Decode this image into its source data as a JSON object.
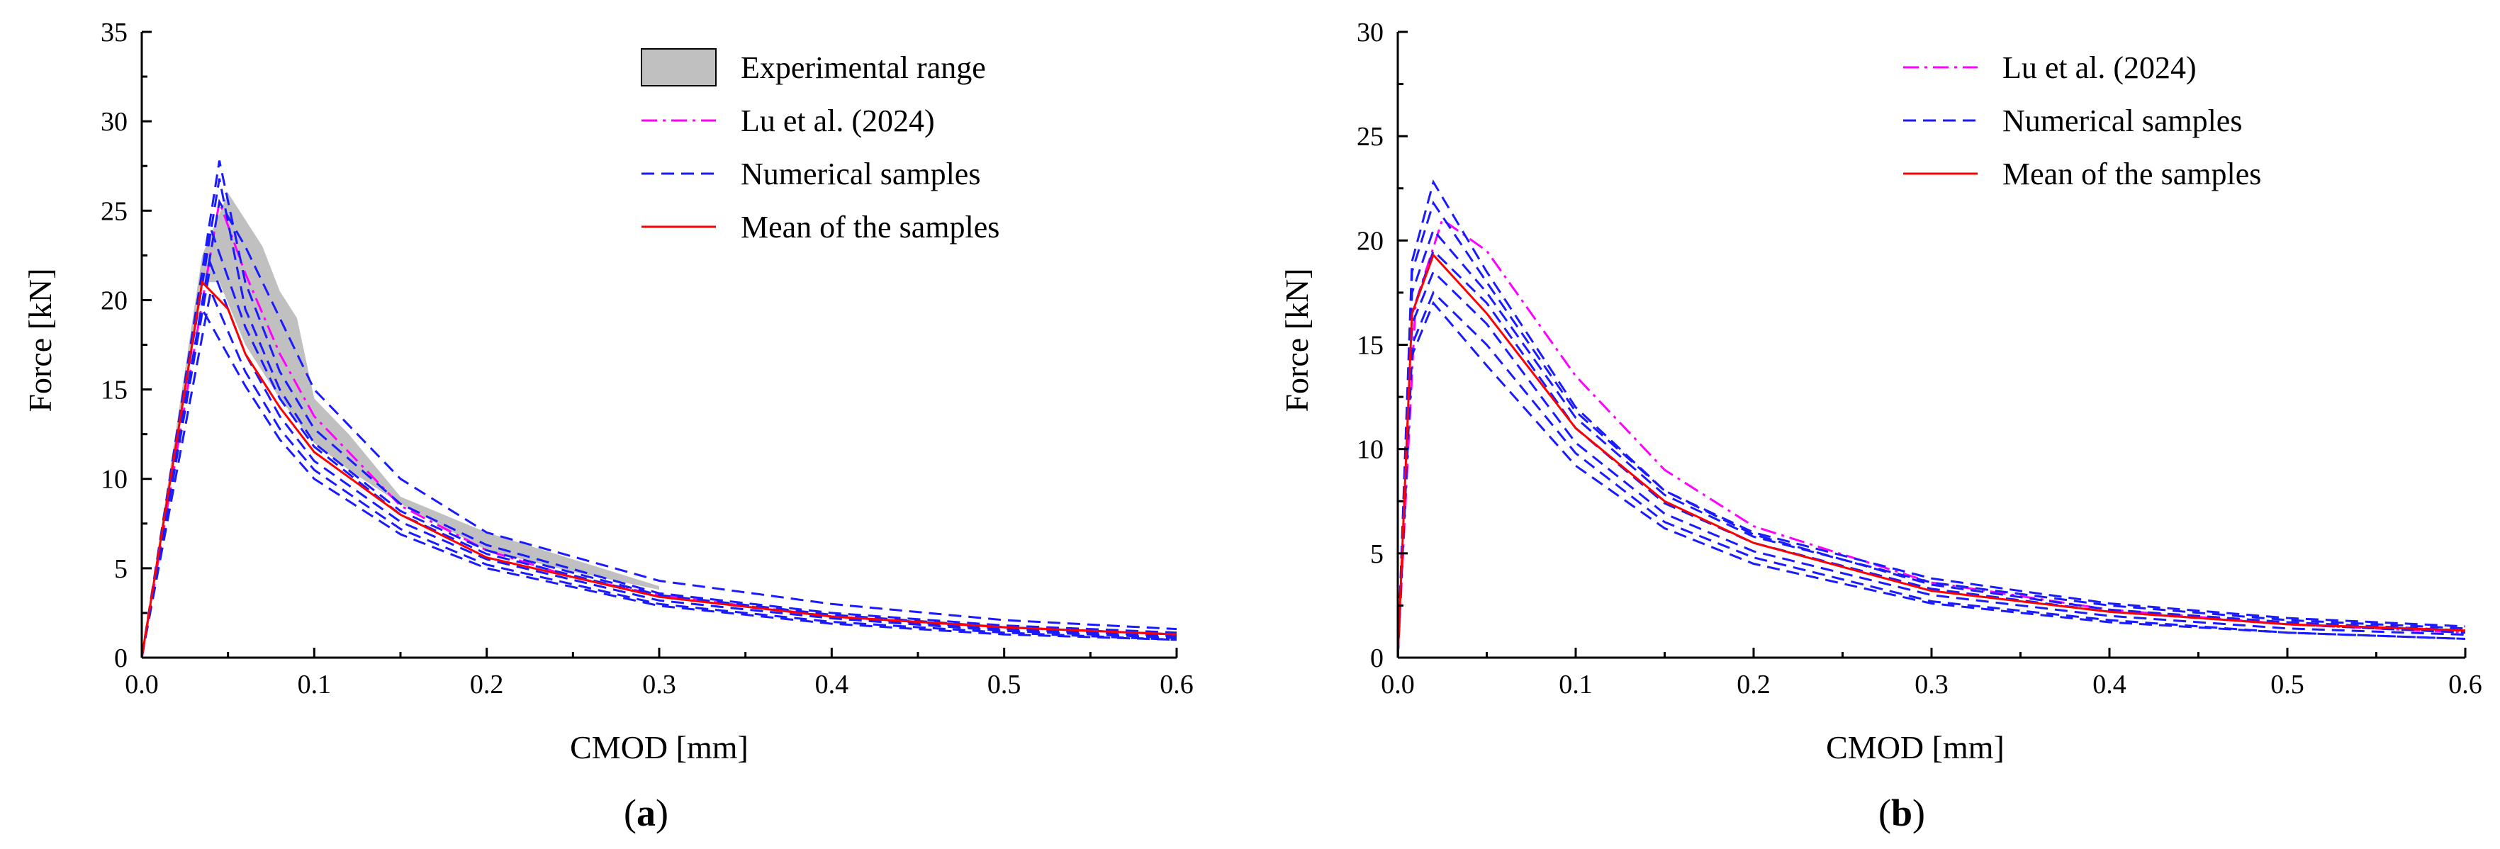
{
  "chart_data": [
    {
      "type": "line",
      "panel": "(a)",
      "panel_letter": "a",
      "xlabel": "CMOD [mm]",
      "ylabel": "Force [kN]",
      "xlim": [
        0.0,
        0.6
      ],
      "ylim": [
        0,
        35
      ],
      "xticks": [
        0.0,
        0.1,
        0.2,
        0.3,
        0.4,
        0.5,
        0.6
      ],
      "xtick_labels": [
        "0.0",
        "0.1",
        "0.2",
        "0.3",
        "0.4",
        "0.5",
        "0.6"
      ],
      "yticks": [
        0,
        5,
        10,
        15,
        20,
        25,
        30,
        35
      ],
      "ytick_labels": [
        "0",
        "5",
        "10",
        "15",
        "20",
        "25",
        "30",
        "35"
      ],
      "grid": false,
      "legend_position": "top-right",
      "legend": [
        "Experimental range",
        "Lu et al. (2024)",
        "Numerical samples",
        "Mean of the samples"
      ],
      "experimental_range": {
        "upper": [
          [
            0.0,
            0
          ],
          [
            0.035,
            22.5
          ],
          [
            0.05,
            26.0
          ],
          [
            0.06,
            24.5
          ],
          [
            0.07,
            23.0
          ],
          [
            0.08,
            20.5
          ],
          [
            0.09,
            19.0
          ],
          [
            0.1,
            14.5
          ],
          [
            0.12,
            12.5
          ],
          [
            0.15,
            9.0
          ],
          [
            0.2,
            7.0
          ],
          [
            0.25,
            5.5
          ],
          [
            0.3,
            4.0
          ]
        ],
        "lower": [
          [
            0.3,
            3.8
          ],
          [
            0.25,
            4.8
          ],
          [
            0.2,
            6.0
          ],
          [
            0.15,
            8.6
          ],
          [
            0.12,
            10.5
          ],
          [
            0.1,
            12.0
          ],
          [
            0.08,
            14.5
          ],
          [
            0.06,
            17.5
          ],
          [
            0.045,
            21.0
          ],
          [
            0.035,
            21.0
          ],
          [
            0.0,
            0
          ]
        ]
      },
      "series": [
        {
          "name": "Lu et al. (2024)",
          "style": "dashdot",
          "color": "#ff00ff",
          "x": [
            0.0,
            0.045,
            0.06,
            0.08,
            0.1,
            0.15,
            0.2,
            0.25,
            0.3,
            0.4,
            0.5,
            0.6
          ],
          "y": [
            0,
            25.5,
            21.5,
            17.0,
            13.5,
            8.5,
            6.0,
            4.5,
            3.5,
            2.3,
            1.7,
            1.3
          ]
        },
        {
          "name": "Numerical sample 1",
          "style": "dash",
          "color": "#1a1aff",
          "x": [
            0.0,
            0.045,
            0.06,
            0.08,
            0.1,
            0.15,
            0.2,
            0.3,
            0.4,
            0.5,
            0.6
          ],
          "y": [
            0,
            27.8,
            21.0,
            16.0,
            12.8,
            8.6,
            6.3,
            3.6,
            2.5,
            1.8,
            1.4
          ]
        },
        {
          "name": "Numerical sample 2",
          "style": "dash",
          "color": "#1a1aff",
          "x": [
            0.0,
            0.045,
            0.06,
            0.08,
            0.1,
            0.15,
            0.2,
            0.3,
            0.4,
            0.5,
            0.6
          ],
          "y": [
            0,
            26.8,
            19.5,
            15.0,
            12.0,
            8.2,
            6.0,
            3.5,
            2.4,
            1.7,
            1.3
          ]
        },
        {
          "name": "Numerical sample 3",
          "style": "dash",
          "color": "#1a1aff",
          "x": [
            0.0,
            0.045,
            0.06,
            0.08,
            0.1,
            0.15,
            0.2,
            0.3,
            0.4,
            0.5,
            0.6
          ],
          "y": [
            0,
            25.5,
            23.0,
            19.0,
            15.0,
            10.0,
            7.0,
            4.3,
            3.0,
            2.1,
            1.6
          ]
        },
        {
          "name": "Numerical sample 4",
          "style": "dash",
          "color": "#1a1aff",
          "x": [
            0.0,
            0.04,
            0.06,
            0.08,
            0.1,
            0.15,
            0.2,
            0.3,
            0.4,
            0.5,
            0.6
          ],
          "y": [
            0,
            24.0,
            18.5,
            14.5,
            11.8,
            8.0,
            5.8,
            3.4,
            2.3,
            1.6,
            1.2
          ]
        },
        {
          "name": "Numerical sample 5",
          "style": "dash",
          "color": "#1a1aff",
          "x": [
            0.0,
            0.04,
            0.06,
            0.08,
            0.1,
            0.15,
            0.2,
            0.3,
            0.4,
            0.5,
            0.6
          ],
          "y": [
            0,
            22.0,
            17.0,
            13.5,
            11.0,
            7.6,
            5.5,
            3.2,
            2.2,
            1.5,
            1.1
          ]
        },
        {
          "name": "Numerical sample 6",
          "style": "dash",
          "color": "#1a1aff",
          "x": [
            0.0,
            0.04,
            0.06,
            0.08,
            0.1,
            0.15,
            0.2,
            0.3,
            0.4,
            0.5,
            0.6
          ],
          "y": [
            0,
            20.5,
            16.0,
            12.8,
            10.5,
            7.2,
            5.2,
            3.0,
            2.0,
            1.4,
            1.0
          ]
        },
        {
          "name": "Numerical sample 7",
          "style": "dash",
          "color": "#1a1aff",
          "x": [
            0.0,
            0.035,
            0.06,
            0.08,
            0.1,
            0.15,
            0.2,
            0.3,
            0.4,
            0.5,
            0.6
          ],
          "y": [
            0,
            19.5,
            15.2,
            12.2,
            10.0,
            6.9,
            5.0,
            2.9,
            1.9,
            1.3,
            1.0
          ]
        },
        {
          "name": "Mean of the samples",
          "style": "solid",
          "color": "#ff0000",
          "x": [
            0.0,
            0.035,
            0.05,
            0.06,
            0.08,
            0.1,
            0.15,
            0.2,
            0.3,
            0.4,
            0.5,
            0.6
          ],
          "y": [
            0,
            21.0,
            19.5,
            17.0,
            14.0,
            11.5,
            8.0,
            5.6,
            3.4,
            2.3,
            1.7,
            1.3
          ]
        }
      ]
    },
    {
      "type": "line",
      "panel": "(b)",
      "panel_letter": "b",
      "xlabel": "CMOD [mm]",
      "ylabel": "Force [kN]",
      "xlim": [
        0.0,
        0.6
      ],
      "ylim": [
        0,
        30
      ],
      "xticks": [
        0.0,
        0.1,
        0.2,
        0.3,
        0.4,
        0.5,
        0.6
      ],
      "xtick_labels": [
        "0.0",
        "0.1",
        "0.2",
        "0.3",
        "0.4",
        "0.5",
        "0.6"
      ],
      "yticks": [
        0,
        5,
        10,
        15,
        20,
        25,
        30
      ],
      "ytick_labels": [
        "0",
        "5",
        "10",
        "15",
        "20",
        "25",
        "30"
      ],
      "grid": false,
      "legend_position": "top-right",
      "legend": [
        "Lu et al. (2024)",
        "Numerical samples",
        "Mean of the samples"
      ],
      "series": [
        {
          "name": "Lu et al. (2024)",
          "style": "dashdot",
          "color": "#ff00ff",
          "x": [
            0.0,
            0.01,
            0.025,
            0.05,
            0.1,
            0.15,
            0.2,
            0.3,
            0.4,
            0.5,
            0.6
          ],
          "y": [
            0,
            17.0,
            21.0,
            19.5,
            13.5,
            9.0,
            6.3,
            3.6,
            2.3,
            1.6,
            1.2
          ]
        },
        {
          "name": "Numerical sample 1",
          "style": "dash",
          "color": "#1a1aff",
          "x": [
            0.0,
            0.008,
            0.02,
            0.05,
            0.1,
            0.15,
            0.2,
            0.3,
            0.4,
            0.5,
            0.6
          ],
          "y": [
            0,
            19.0,
            22.8,
            18.5,
            12.0,
            8.0,
            5.9,
            3.5,
            2.3,
            1.7,
            1.3
          ]
        },
        {
          "name": "Numerical sample 2",
          "style": "dash",
          "color": "#1a1aff",
          "x": [
            0.0,
            0.008,
            0.02,
            0.05,
            0.1,
            0.15,
            0.2,
            0.3,
            0.4,
            0.5,
            0.6
          ],
          "y": [
            0,
            18.5,
            21.8,
            18.0,
            11.8,
            8.0,
            6.0,
            3.8,
            2.6,
            1.9,
            1.5
          ]
        },
        {
          "name": "Numerical sample 3",
          "style": "dash",
          "color": "#1a1aff",
          "x": [
            0.0,
            0.008,
            0.02,
            0.05,
            0.1,
            0.15,
            0.2,
            0.3,
            0.4,
            0.5,
            0.6
          ],
          "y": [
            0,
            17.5,
            20.5,
            17.5,
            11.5,
            7.8,
            5.8,
            3.6,
            2.5,
            1.8,
            1.4
          ]
        },
        {
          "name": "Numerical sample 4",
          "style": "dash",
          "color": "#1a1aff",
          "x": [
            0.0,
            0.008,
            0.02,
            0.05,
            0.1,
            0.15,
            0.2,
            0.3,
            0.4,
            0.5,
            0.6
          ],
          "y": [
            0,
            16.5,
            19.5,
            17.0,
            11.0,
            7.4,
            5.5,
            3.3,
            2.2,
            1.6,
            1.2
          ]
        },
        {
          "name": "Numerical sample 5",
          "style": "dash",
          "color": "#1a1aff",
          "x": [
            0.0,
            0.008,
            0.02,
            0.05,
            0.1,
            0.15,
            0.2,
            0.3,
            0.4,
            0.5,
            0.6
          ],
          "y": [
            0,
            16.0,
            18.5,
            16.0,
            10.3,
            6.9,
            5.1,
            3.0,
            2.0,
            1.4,
            1.1
          ]
        },
        {
          "name": "Numerical sample 6",
          "style": "dash",
          "color": "#1a1aff",
          "x": [
            0.0,
            0.008,
            0.02,
            0.05,
            0.1,
            0.15,
            0.2,
            0.3,
            0.4,
            0.5,
            0.6
          ],
          "y": [
            0,
            15.0,
            17.5,
            15.0,
            9.8,
            6.5,
            4.8,
            2.7,
            1.8,
            1.2,
            0.9
          ]
        },
        {
          "name": "Numerical sample 7",
          "style": "dash",
          "color": "#1a1aff",
          "x": [
            0.0,
            0.008,
            0.02,
            0.05,
            0.1,
            0.15,
            0.2,
            0.3,
            0.4,
            0.5,
            0.6
          ],
          "y": [
            0,
            14.5,
            17.0,
            14.0,
            9.2,
            6.2,
            4.5,
            2.6,
            1.7,
            1.2,
            0.9
          ]
        },
        {
          "name": "Mean of the samples",
          "style": "solid",
          "color": "#ff0000",
          "x": [
            0.0,
            0.008,
            0.02,
            0.05,
            0.1,
            0.15,
            0.2,
            0.3,
            0.4,
            0.5,
            0.6
          ],
          "y": [
            0,
            16.5,
            19.3,
            16.5,
            11.0,
            7.5,
            5.5,
            3.2,
            2.2,
            1.6,
            1.3
          ]
        }
      ]
    }
  ]
}
